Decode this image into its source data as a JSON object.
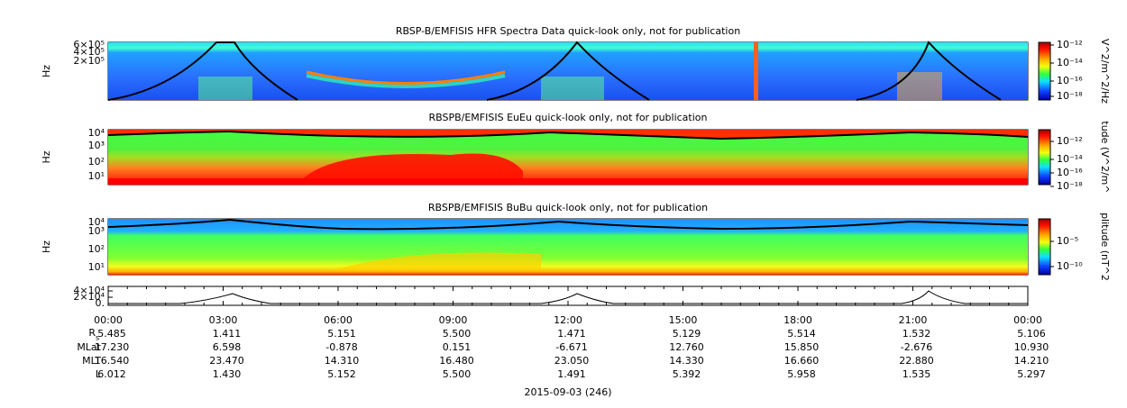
{
  "panels": [
    {
      "title": "RBSP-B/EMFISIS  HFR Spectra Data quick-look only, not for publication",
      "ylabel": "Hz",
      "yticks": [
        "6×10⁵",
        "4×10⁵",
        "2×10⁵"
      ],
      "colorbar_label": "V^2/m^2/Hz",
      "colorbar_ticks": [
        "10⁻¹²",
        "10⁻¹⁴",
        "10⁻¹⁶",
        "10⁻¹⁸"
      ]
    },
    {
      "title": "RBSPB/EMFISIS  EuEu quick-look only, not for publication",
      "ylabel": "Hz",
      "yticks": [
        "10⁴",
        "10³",
        "10²",
        "10¹"
      ],
      "colorbar_label": "tude (V^2/m^",
      "colorbar_ticks": [
        "10⁻¹²",
        "10⁻¹⁴",
        "10⁻¹⁶",
        "10⁻¹⁸"
      ]
    },
    {
      "title": "RBSPB/EMFISIS  BuBu quick-look only, not for publication",
      "ylabel": "Hz",
      "yticks": [
        "10⁴",
        "10³",
        "10²",
        "10¹"
      ],
      "colorbar_label": "plitude (nT^2",
      "colorbar_ticks": [
        "10⁻⁵",
        "10⁻¹⁰"
      ]
    }
  ],
  "line_panel": {
    "yticks": [
      "4×10⁴",
      "2×10⁴",
      "0."
    ]
  },
  "x_axis": {
    "ticks": [
      "00:00",
      "03:00",
      "06:00",
      "09:00",
      "12:00",
      "15:00",
      "18:00",
      "21:00",
      "00:00"
    ],
    "rows": [
      {
        "label": "R",
        "subscript": "s",
        "values": [
          "5.485",
          "1.411",
          "5.151",
          "5.500",
          "1.471",
          "5.129",
          "5.514",
          "1.532",
          "5.106"
        ]
      },
      {
        "label": "MLat",
        "values": [
          "17.230",
          "6.598",
          "-0.878",
          "0.151",
          "-6.671",
          "12.760",
          "15.850",
          "-2.676",
          "10.930"
        ]
      },
      {
        "label": "MLT",
        "values": [
          "16.540",
          "23.470",
          "14.310",
          "16.480",
          "23.050",
          "14.330",
          "16.660",
          "22.880",
          "14.210"
        ]
      },
      {
        "label": "L",
        "values": [
          "6.012",
          "1.430",
          "5.152",
          "5.500",
          "1.491",
          "5.392",
          "5.958",
          "1.535",
          "5.297"
        ]
      }
    ],
    "date": "2015-09-03 (246)"
  }
}
